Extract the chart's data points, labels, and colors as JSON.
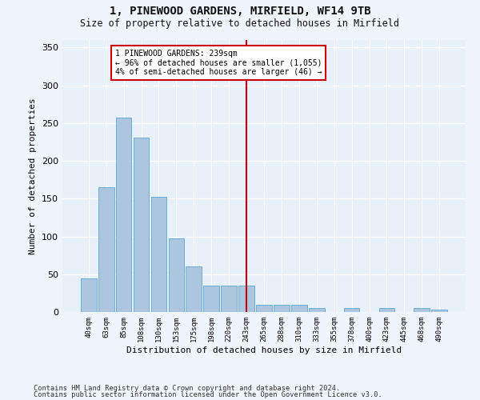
{
  "title_line1": "1, PINEWOOD GARDENS, MIRFIELD, WF14 9TB",
  "title_line2": "Size of property relative to detached houses in Mirfield",
  "xlabel": "Distribution of detached houses by size in Mirfield",
  "ylabel": "Number of detached properties",
  "categories": [
    "40sqm",
    "63sqm",
    "85sqm",
    "108sqm",
    "130sqm",
    "153sqm",
    "175sqm",
    "198sqm",
    "220sqm",
    "243sqm",
    "265sqm",
    "288sqm",
    "310sqm",
    "333sqm",
    "355sqm",
    "378sqm",
    "400sqm",
    "423sqm",
    "445sqm",
    "468sqm",
    "490sqm"
  ],
  "values": [
    44,
    165,
    257,
    231,
    153,
    97,
    60,
    35,
    35,
    35,
    10,
    10,
    10,
    5,
    0,
    5,
    0,
    5,
    0,
    5,
    3
  ],
  "bar_color": "#adc6e0",
  "bar_edge_color": "#6baed6",
  "background_color": "#e8f0fa",
  "grid_color": "#ffffff",
  "fig_background": "#f0f4fc",
  "vline_color": "#cc0000",
  "annotation_text": "1 PINEWOOD GARDENS: 239sqm\n← 96% of detached houses are smaller (1,055)\n4% of semi-detached houses are larger (46) →",
  "annotation_box_color": "#cc0000",
  "ylim": [
    0,
    360
  ],
  "yticks": [
    0,
    50,
    100,
    150,
    200,
    250,
    300,
    350
  ],
  "footer_line1": "Contains HM Land Registry data © Crown copyright and database right 2024.",
  "footer_line2": "Contains public sector information licensed under the Open Government Licence v3.0."
}
